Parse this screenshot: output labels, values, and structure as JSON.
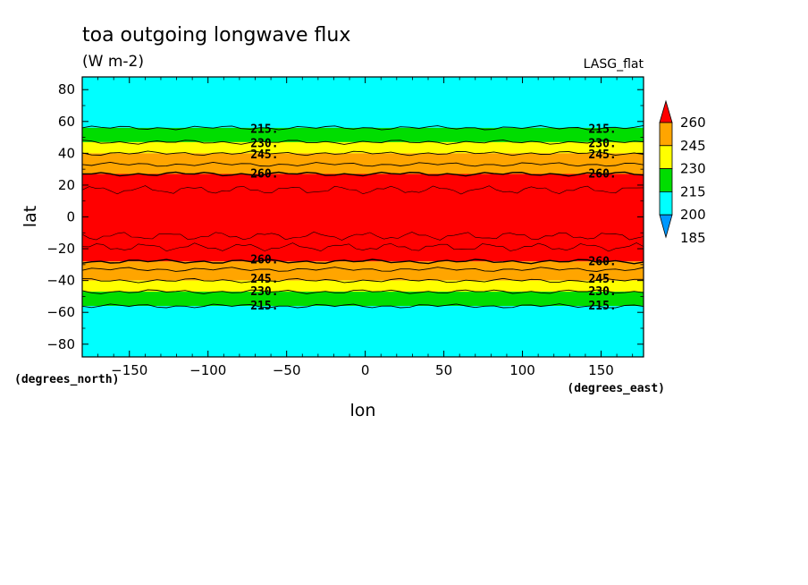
{
  "chart_data": {
    "type": "contour",
    "title": "toa outgoing longwave flux",
    "units": "(W m-2)",
    "model": "LASG_flat",
    "xlabel": "lon",
    "ylabel": "lat",
    "x_units_note": "(degrees_east)",
    "y_units_note": "(degrees_north)",
    "xlim": [
      -180,
      177
    ],
    "ylim": [
      -88,
      88
    ],
    "x_ticks": [
      -150,
      -100,
      -50,
      0,
      50,
      100,
      150
    ],
    "y_ticks": [
      -80,
      -60,
      -40,
      -20,
      0,
      20,
      40,
      60,
      80
    ],
    "x_tick_labels": [
      "−150",
      "−100",
      "−50",
      "0",
      "50",
      "100",
      "150"
    ],
    "y_tick_labels": [
      "−80",
      "−60",
      "−40",
      "−20",
      "0",
      "20",
      "40",
      "60",
      "80"
    ],
    "levels": [
      185,
      200,
      215,
      230,
      245,
      260
    ],
    "colorbar": {
      "tick_labels": [
        "260",
        "245",
        "230",
        "215",
        "200",
        "185"
      ],
      "colors": [
        "#ff0000",
        "#ffa500",
        "#ffff00",
        "#00dd00",
        "#00ffff",
        "#0099ff"
      ],
      "extend": "both"
    },
    "bands": [
      {
        "lat_from": 56,
        "lat_to": 88,
        "color": "#00ffff",
        "range": "200-215"
      },
      {
        "lat_from": 47,
        "lat_to": 56,
        "color": "#00dd00",
        "range": "215-230"
      },
      {
        "lat_from": 40,
        "lat_to": 47,
        "color": "#ffff00",
        "range": "230-245"
      },
      {
        "lat_from": 27,
        "lat_to": 40,
        "color": "#ffa500",
        "range": "245-260"
      },
      {
        "lat_from": -28,
        "lat_to": 27,
        "color": "#ff0000",
        "range": ">260"
      },
      {
        "lat_from": -40,
        "lat_to": -28,
        "color": "#ffa500",
        "range": "245-260"
      },
      {
        "lat_from": -47,
        "lat_to": -40,
        "color": "#ffff00",
        "range": "230-245"
      },
      {
        "lat_from": -56,
        "lat_to": -47,
        "color": "#00dd00",
        "range": "215-230"
      },
      {
        "lat_from": -88,
        "lat_to": -56,
        "color": "#00ffff",
        "range": "200-215"
      }
    ],
    "contour_labels": [
      {
        "text": "215.",
        "lon": -73,
        "lat": 55
      },
      {
        "text": "230.",
        "lon": -73,
        "lat": 46
      },
      {
        "text": "245.",
        "lon": -73,
        "lat": 39
      },
      {
        "text": "260.",
        "lon": -73,
        "lat": 27
      },
      {
        "text": "215.",
        "lon": 142,
        "lat": 55
      },
      {
        "text": "230.",
        "lon": 142,
        "lat": 46
      },
      {
        "text": "245.",
        "lon": 142,
        "lat": 39
      },
      {
        "text": "260.",
        "lon": 142,
        "lat": 27
      },
      {
        "text": "260.",
        "lon": -73,
        "lat": -27
      },
      {
        "text": "245.",
        "lon": -73,
        "lat": -39
      },
      {
        "text": "230.",
        "lon": -73,
        "lat": -47
      },
      {
        "text": "215.",
        "lon": -73,
        "lat": -56
      },
      {
        "text": "260.",
        "lon": 142,
        "lat": -28
      },
      {
        "text": "245.",
        "lon": 142,
        "lat": -39
      },
      {
        "text": "230.",
        "lon": 142,
        "lat": -47
      },
      {
        "text": "215.",
        "lon": 142,
        "lat": -56
      }
    ]
  }
}
